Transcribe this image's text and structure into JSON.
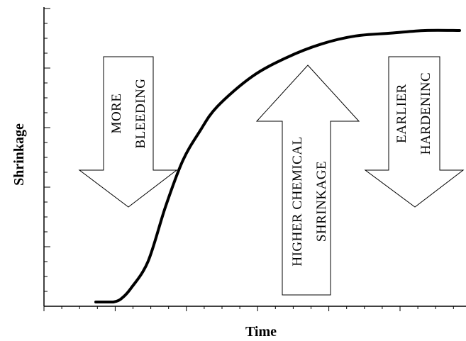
{
  "chart_data": {
    "type": "line",
    "title": "",
    "xlabel": "Time",
    "ylabel": "Shrinkage",
    "x_ticks_labeled": false,
    "y_ticks_labeled": false,
    "grid": false,
    "series": [
      {
        "x": [
          0,
          0.02,
          0.05,
          0.1,
          0.15,
          0.2,
          0.25,
          0.3,
          0.4,
          0.5,
          0.6,
          0.7,
          0.8,
          0.9,
          1.0
        ],
        "y": [
          0,
          0.01,
          0.05,
          0.15,
          0.35,
          0.52,
          0.63,
          0.72,
          0.83,
          0.9,
          0.95,
          0.98,
          0.99,
          1.0,
          1.0
        ]
      }
    ]
  },
  "annotations": {
    "left_arrow": {
      "direction": "down",
      "lines": [
        "MORE",
        "BLEEDING"
      ]
    },
    "center_arrow": {
      "direction": "up",
      "lines": [
        "HIGHER CHEMICAL",
        "SHRINKAGE"
      ]
    },
    "right_arrow": {
      "direction": "down",
      "lines": [
        "EARLIER",
        "HARDENINC"
      ]
    }
  }
}
